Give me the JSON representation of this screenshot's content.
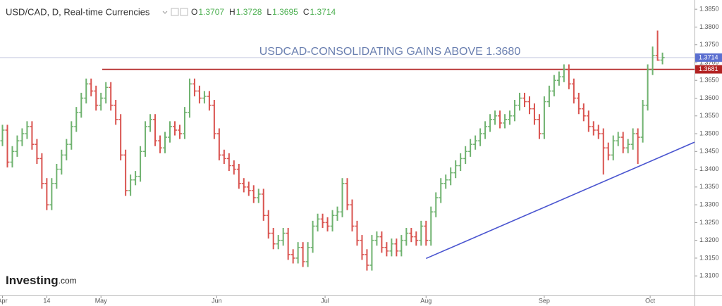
{
  "chart_data": {
    "type": "ohlc",
    "title": "USD/CAD, D, Real-time Currencies",
    "ohlc_labels": [
      "O",
      "H",
      "L",
      "C"
    ],
    "annotation": "USDCAD-CONSOLIDATING GAINS ABOVE 1.3680",
    "logo": [
      "Investing",
      ".com"
    ],
    "up_color": "#6fb26f",
    "down_color": "#d9534f",
    "ylim": [
      1.3045,
      1.3876
    ],
    "xlim": [
      -0.5,
      140.5
    ],
    "yticks": [
      {
        "value": 1.31,
        "label": "1.3100"
      },
      {
        "value": 1.315,
        "label": "1.3150"
      },
      {
        "value": 1.32,
        "label": "1.3200"
      },
      {
        "value": 1.325,
        "label": "1.3250"
      },
      {
        "value": 1.33,
        "label": "1.3300"
      },
      {
        "value": 1.335,
        "label": "1.3350"
      },
      {
        "value": 1.34,
        "label": "1.3400"
      },
      {
        "value": 1.345,
        "label": "1.3450"
      },
      {
        "value": 1.35,
        "label": "1.3500"
      },
      {
        "value": 1.355,
        "label": "1.3550"
      },
      {
        "value": 1.36,
        "label": "1.3600"
      },
      {
        "value": 1.365,
        "label": "1.3650"
      },
      {
        "value": 1.37,
        "label": "1.3700"
      },
      {
        "value": 1.375,
        "label": "1.3750"
      },
      {
        "value": 1.38,
        "label": "1.3800"
      },
      {
        "value": 1.385,
        "label": "1.3850"
      }
    ],
    "xticks": [
      {
        "value": 0,
        "label": "Apr"
      },
      {
        "value": 9,
        "label": "14"
      },
      {
        "value": 20,
        "label": "May"
      },
      {
        "value": 43.5,
        "label": "Jun"
      },
      {
        "value": 65.5,
        "label": "Jul"
      },
      {
        "value": 86,
        "label": "Aug"
      },
      {
        "value": 110,
        "label": "Sep"
      },
      {
        "value": 131.5,
        "label": "Oct"
      }
    ],
    "hline": {
      "value": 1.3681,
      "color": "#b22222"
    },
    "last_price_color": "#5b6fd0",
    "trendline": {
      "x": [
        86,
        140.5
      ],
      "y": [
        1.3149,
        1.3476
      ],
      "color": "#4a55d0"
    },
    "ohlc": [
      [
        1.348,
        1.3525,
        1.3465,
        1.351
      ],
      [
        1.351,
        1.3525,
        1.3405,
        1.342
      ],
      [
        1.342,
        1.3465,
        1.3405,
        1.345
      ],
      [
        1.345,
        1.3495,
        1.3435,
        1.348
      ],
      [
        1.348,
        1.3515,
        1.3465,
        1.35
      ],
      [
        1.35,
        1.3535,
        1.3485,
        1.352
      ],
      [
        1.352,
        1.3535,
        1.3455,
        1.347
      ],
      [
        1.347,
        1.3485,
        1.3415,
        1.343
      ],
      [
        1.343,
        1.3445,
        1.3345,
        1.336
      ],
      [
        1.336,
        1.3375,
        1.3285,
        1.33
      ],
      [
        1.33,
        1.3375,
        1.3285,
        1.336
      ],
      [
        1.336,
        1.3415,
        1.3345,
        1.34
      ],
      [
        1.34,
        1.3455,
        1.3385,
        1.344
      ],
      [
        1.344,
        1.3485,
        1.3425,
        1.347
      ],
      [
        1.347,
        1.3535,
        1.3455,
        1.352
      ],
      [
        1.352,
        1.3575,
        1.3505,
        1.356
      ],
      [
        1.356,
        1.3615,
        1.3545,
        1.36
      ],
      [
        1.36,
        1.3655,
        1.3585,
        1.364
      ],
      [
        1.364,
        1.3655,
        1.3605,
        1.362
      ],
      [
        1.362,
        1.3635,
        1.3565,
        1.358
      ],
      [
        1.358,
        1.3615,
        1.3565,
        1.36
      ],
      [
        1.36,
        1.3645,
        1.3585,
        1.363
      ],
      [
        1.363,
        1.3645,
        1.3565,
        1.358
      ],
      [
        1.358,
        1.3595,
        1.3525,
        1.354
      ],
      [
        1.354,
        1.3555,
        1.3425,
        1.344
      ],
      [
        1.344,
        1.3455,
        1.3325,
        1.334
      ],
      [
        1.334,
        1.3385,
        1.3325,
        1.337
      ],
      [
        1.337,
        1.3395,
        1.3355,
        1.338
      ],
      [
        1.338,
        1.3465,
        1.3365,
        1.345
      ],
      [
        1.345,
        1.3535,
        1.3435,
        1.352
      ],
      [
        1.352,
        1.3555,
        1.3505,
        1.354
      ],
      [
        1.354,
        1.3555,
        1.3465,
        1.348
      ],
      [
        1.348,
        1.3495,
        1.3445,
        1.346
      ],
      [
        1.346,
        1.3505,
        1.3445,
        1.349
      ],
      [
        1.349,
        1.3535,
        1.3475,
        1.352
      ],
      [
        1.352,
        1.3535,
        1.3495,
        1.351
      ],
      [
        1.351,
        1.3525,
        1.3485,
        1.35
      ],
      [
        1.35,
        1.3575,
        1.3485,
        1.356
      ],
      [
        1.356,
        1.3655,
        1.3545,
        1.364
      ],
      [
        1.364,
        1.3655,
        1.3605,
        1.362
      ],
      [
        1.362,
        1.3635,
        1.3585,
        1.36
      ],
      [
        1.36,
        1.362,
        1.3585,
        1.3605
      ],
      [
        1.3605,
        1.362,
        1.3565,
        1.358
      ],
      [
        1.358,
        1.3595,
        1.3485,
        1.35
      ],
      [
        1.35,
        1.3515,
        1.3425,
        1.344
      ],
      [
        1.344,
        1.3455,
        1.3415,
        1.343
      ],
      [
        1.343,
        1.3445,
        1.3395,
        1.341
      ],
      [
        1.341,
        1.3425,
        1.3385,
        1.34
      ],
      [
        1.34,
        1.3415,
        1.3345,
        1.336
      ],
      [
        1.336,
        1.3375,
        1.3335,
        1.335
      ],
      [
        1.335,
        1.3365,
        1.3325,
        1.334
      ],
      [
        1.334,
        1.3355,
        1.3305,
        1.332
      ],
      [
        1.332,
        1.3345,
        1.3305,
        1.333
      ],
      [
        1.333,
        1.3345,
        1.3255,
        1.327
      ],
      [
        1.327,
        1.3285,
        1.3205,
        1.322
      ],
      [
        1.322,
        1.3235,
        1.3175,
        1.319
      ],
      [
        1.319,
        1.3215,
        1.3175,
        1.32
      ],
      [
        1.32,
        1.3235,
        1.3185,
        1.322
      ],
      [
        1.322,
        1.3235,
        1.3145,
        1.316
      ],
      [
        1.316,
        1.3175,
        1.3135,
        1.315
      ],
      [
        1.315,
        1.3195,
        1.3135,
        1.318
      ],
      [
        1.318,
        1.3195,
        1.3125,
        1.314
      ],
      [
        1.314,
        1.3195,
        1.3125,
        1.318
      ],
      [
        1.318,
        1.3255,
        1.3165,
        1.324
      ],
      [
        1.324,
        1.3275,
        1.3225,
        1.326
      ],
      [
        1.326,
        1.3275,
        1.3235,
        1.325
      ],
      [
        1.325,
        1.3265,
        1.3225,
        1.324
      ],
      [
        1.324,
        1.3285,
        1.3225,
        1.327
      ],
      [
        1.327,
        1.3295,
        1.3255,
        1.328
      ],
      [
        1.328,
        1.3375,
        1.3265,
        1.336
      ],
      [
        1.336,
        1.3375,
        1.3285,
        1.33
      ],
      [
        1.33,
        1.3315,
        1.3225,
        1.324
      ],
      [
        1.324,
        1.3255,
        1.3185,
        1.32
      ],
      [
        1.32,
        1.3215,
        1.3145,
        1.316
      ],
      [
        1.316,
        1.3175,
        1.3115,
        1.313
      ],
      [
        1.313,
        1.3215,
        1.3115,
        1.32
      ],
      [
        1.32,
        1.3225,
        1.3185,
        1.321
      ],
      [
        1.321,
        1.3225,
        1.3165,
        1.318
      ],
      [
        1.318,
        1.3195,
        1.3155,
        1.317
      ],
      [
        1.317,
        1.3205,
        1.3155,
        1.319
      ],
      [
        1.319,
        1.3205,
        1.3155,
        1.317
      ],
      [
        1.317,
        1.3215,
        1.3155,
        1.32
      ],
      [
        1.32,
        1.3235,
        1.3185,
        1.322
      ],
      [
        1.322,
        1.3235,
        1.3195,
        1.321
      ],
      [
        1.321,
        1.3225,
        1.3185,
        1.32
      ],
      [
        1.32,
        1.3255,
        1.3185,
        1.324
      ],
      [
        1.324,
        1.3255,
        1.3185,
        1.32
      ],
      [
        1.32,
        1.3295,
        1.3185,
        1.328
      ],
      [
        1.328,
        1.3335,
        1.3265,
        1.332
      ],
      [
        1.332,
        1.3375,
        1.3305,
        1.336
      ],
      [
        1.336,
        1.3385,
        1.3345,
        1.337
      ],
      [
        1.337,
        1.3405,
        1.3355,
        1.339
      ],
      [
        1.339,
        1.3425,
        1.3375,
        1.341
      ],
      [
        1.341,
        1.3445,
        1.3395,
        1.343
      ],
      [
        1.343,
        1.3465,
        1.3415,
        1.345
      ],
      [
        1.345,
        1.3485,
        1.3435,
        1.347
      ],
      [
        1.347,
        1.3495,
        1.3455,
        1.348
      ],
      [
        1.348,
        1.3515,
        1.3465,
        1.35
      ],
      [
        1.35,
        1.3535,
        1.3485,
        1.352
      ],
      [
        1.352,
        1.3555,
        1.3505,
        1.354
      ],
      [
        1.354,
        1.3565,
        1.3525,
        1.355
      ],
      [
        1.355,
        1.3565,
        1.3515,
        1.353
      ],
      [
        1.353,
        1.3555,
        1.3515,
        1.354
      ],
      [
        1.354,
        1.3565,
        1.3525,
        1.355
      ],
      [
        1.355,
        1.3595,
        1.3535,
        1.358
      ],
      [
        1.358,
        1.3615,
        1.3565,
        1.36
      ],
      [
        1.36,
        1.3615,
        1.3575,
        1.359
      ],
      [
        1.359,
        1.3605,
        1.3555,
        1.357
      ],
      [
        1.357,
        1.3585,
        1.3525,
        1.354
      ],
      [
        1.354,
        1.3555,
        1.3485,
        1.35
      ],
      [
        1.35,
        1.3605,
        1.3485,
        1.359
      ],
      [
        1.359,
        1.3635,
        1.3575,
        1.362
      ],
      [
        1.362,
        1.3665,
        1.3605,
        1.365
      ],
      [
        1.365,
        1.3675,
        1.3635,
        1.366
      ],
      [
        1.366,
        1.3695,
        1.3645,
        1.368
      ],
      [
        1.368,
        1.3695,
        1.3625,
        1.364
      ],
      [
        1.364,
        1.3655,
        1.3585,
        1.36
      ],
      [
        1.36,
        1.3615,
        1.3555,
        1.357
      ],
      [
        1.357,
        1.3585,
        1.3535,
        1.355
      ],
      [
        1.355,
        1.3565,
        1.3505,
        1.352
      ],
      [
        1.352,
        1.3535,
        1.3495,
        1.351
      ],
      [
        1.351,
        1.3525,
        1.3485,
        1.35
      ],
      [
        1.35,
        1.3515,
        1.3385,
        1.346
      ],
      [
        1.346,
        1.3475,
        1.3425,
        1.344
      ],
      [
        1.344,
        1.3495,
        1.3425,
        1.348
      ],
      [
        1.348,
        1.3505,
        1.3465,
        1.349
      ],
      [
        1.349,
        1.3505,
        1.3445,
        1.346
      ],
      [
        1.346,
        1.3485,
        1.3445,
        1.347
      ],
      [
        1.347,
        1.3515,
        1.3455,
        1.35
      ],
      [
        1.35,
        1.3515,
        1.3415,
        1.349
      ],
      [
        1.349,
        1.3595,
        1.3475,
        1.358
      ],
      [
        1.358,
        1.3695,
        1.3565,
        1.368
      ],
      [
        1.368,
        1.3745,
        1.3665,
        1.372
      ],
      [
        1.372,
        1.379,
        1.3705,
        1.3707
      ],
      [
        1.3707,
        1.3728,
        1.3695,
        1.3714
      ]
    ]
  }
}
